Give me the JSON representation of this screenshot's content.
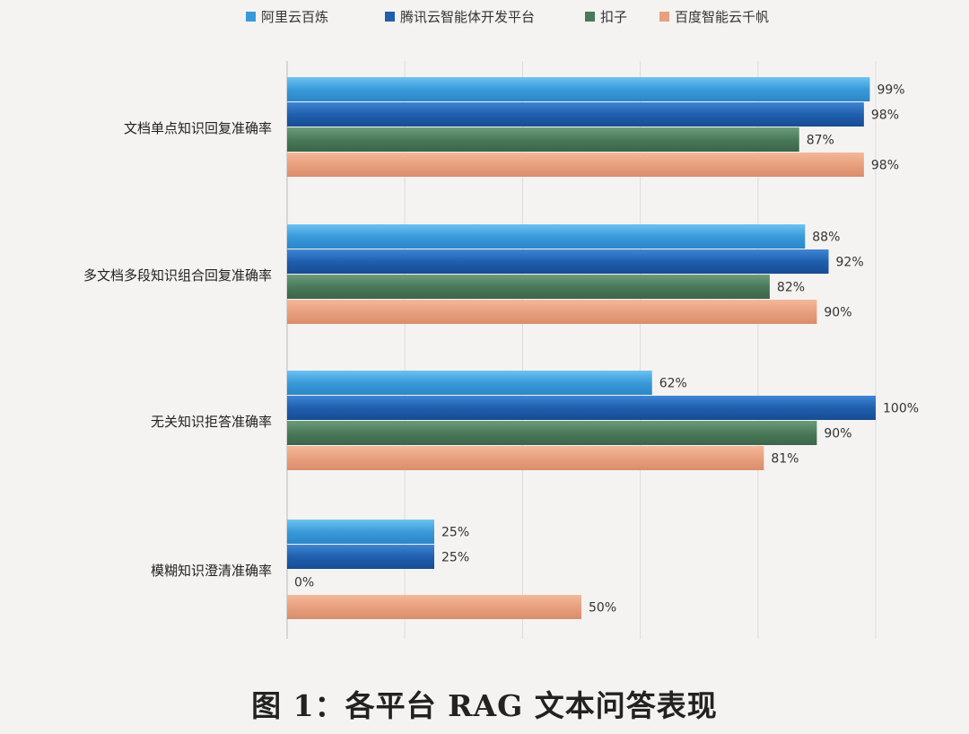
{
  "caption": "图 1：各平台 RAG 文本问答表现",
  "chart_data": {
    "type": "bar",
    "orientation": "horizontal",
    "categories": [
      "文档单点知识回复准确率",
      "多文档多段知识组合回复准确率",
      "无关知识拒答准确率",
      "模糊知识澄清准确率"
    ],
    "series": [
      {
        "name": "阿里云百炼",
        "color": "#3a9ad9",
        "values": [
          99,
          88,
          62,
          25
        ]
      },
      {
        "name": "腾讯云智能体开发平台",
        "color": "#1f5fae",
        "values": [
          98,
          92,
          100,
          25
        ]
      },
      {
        "name": "扣子",
        "color": "#4a7a5a",
        "values": [
          87,
          82,
          90,
          0
        ]
      },
      {
        "name": "百度智能云千帆",
        "color": "#e8a07f",
        "values": [
          98,
          90,
          81,
          50
        ]
      }
    ],
    "value_suffix": "%",
    "xlim": [
      0,
      100
    ],
    "grid": true,
    "legend_position": "top",
    "xlabel": "",
    "ylabel": ""
  }
}
